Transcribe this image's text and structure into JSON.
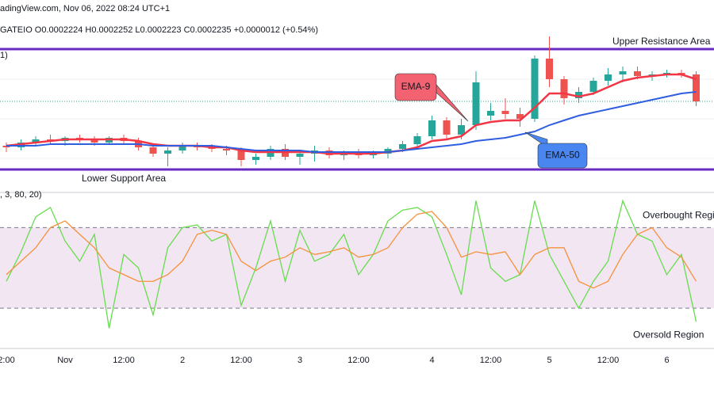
{
  "header": {
    "source": "adingView.com, Nov 06, 2022 08:24 UTC+1",
    "quote": "GATEIO  O0.0002224  H0.0002252  L0.0002223  C0.0002235  +0.0000012 (+0.54%)"
  },
  "chart_data": [
    {
      "type": "candlestick",
      "legend_text": "1)",
      "categories": [
        "2:00",
        null,
        null,
        null,
        "Nov",
        null,
        null,
        null,
        "12:00",
        null,
        null,
        null,
        "2",
        null,
        null,
        null,
        "12:00",
        null,
        null,
        null,
        "3",
        null,
        null,
        null,
        "12:00",
        null,
        null,
        null,
        null,
        "4",
        null,
        null,
        null,
        "12:00",
        null,
        null,
        null,
        "5",
        null,
        null,
        null,
        "12:00",
        null,
        null,
        null,
        "6",
        null,
        null
      ],
      "open": [
        0.0002207,
        0.0002206,
        0.0002209,
        0.0002211,
        0.000221,
        0.0002212,
        0.0002211,
        0.0002209,
        0.0002212,
        0.000221,
        0.0002206,
        0.0002202,
        0.0002204,
        0.0002207,
        0.0002206,
        0.0002205,
        0.0002204,
        0.0002198,
        0.00022,
        0.0002205,
        0.00022,
        0.0002202,
        0.0002204,
        0.0002201,
        0.0002202,
        0.0002201,
        0.0002202,
        0.0002205,
        0.0002208,
        0.0002213,
        0.0002223,
        0.0002214,
        0.000222,
        0.0002226,
        0.0002229,
        0.0002227,
        0.0002224,
        0.0002262,
        0.0002249,
        0.0002237,
        0.0002241,
        0.0002248,
        0.0002252,
        0.0002254,
        0.0002251,
        0.0002252,
        0.0002253,
        0.0002252
      ],
      "high": [
        0.0002209,
        0.0002211,
        0.0002213,
        0.0002214,
        0.0002213,
        0.0002214,
        0.0002213,
        0.0002213,
        0.0002214,
        0.0002212,
        0.0002208,
        0.0002206,
        0.0002209,
        0.0002209,
        0.0002208,
        0.0002207,
        0.0002206,
        0.0002202,
        0.0002207,
        0.0002208,
        0.0002204,
        0.0002207,
        0.0002206,
        0.0002204,
        0.0002205,
        0.0002204,
        0.0002206,
        0.000221,
        0.0002215,
        0.0002226,
        0.0002225,
        0.0002224,
        0.0002254,
        0.0002234,
        0.0002237,
        0.0002231,
        0.0002264,
        0.0002276,
        0.0002251,
        0.0002244,
        0.000225,
        0.0002256,
        0.0002257,
        0.0002257,
        0.0002254,
        0.0002255,
        0.0002255,
        0.0002254
      ],
      "low": [
        0.0002203,
        0.0002204,
        0.0002207,
        0.0002208,
        0.0002207,
        0.0002209,
        0.0002207,
        0.0002208,
        0.0002208,
        0.0002204,
        0.00022,
        0.0002194,
        0.0002202,
        0.0002204,
        0.0002203,
        0.0002201,
        0.0002194,
        0.0002195,
        0.0002198,
        0.0002198,
        0.0002195,
        0.0002197,
        0.0002199,
        0.0002198,
        0.0002199,
        0.0002199,
        0.0002199,
        0.0002203,
        0.0002206,
        0.0002211,
        0.0002211,
        0.0002211,
        0.0002217,
        0.0002223,
        0.0002224,
        0.0002219,
        0.0002222,
        0.0002244,
        0.0002233,
        0.0002234,
        0.0002239,
        0.0002245,
        0.0002247,
        0.0002249,
        0.0002248,
        0.000225,
        0.000225,
        0.0002232
      ],
      "close": [
        0.0002206,
        0.0002209,
        0.0002211,
        0.000221,
        0.0002212,
        0.0002211,
        0.0002209,
        0.0002212,
        0.000221,
        0.0002206,
        0.0002202,
        0.0002204,
        0.0002207,
        0.0002206,
        0.0002205,
        0.0002204,
        0.0002198,
        0.00022,
        0.0002205,
        0.00022,
        0.0002202,
        0.0002204,
        0.0002201,
        0.0002202,
        0.0002201,
        0.0002202,
        0.0002205,
        0.0002208,
        0.0002213,
        0.0002223,
        0.0002214,
        0.000222,
        0.0002247,
        0.0002229,
        0.0002227,
        0.0002224,
        0.0002262,
        0.0002249,
        0.0002237,
        0.0002241,
        0.0002248,
        0.0002252,
        0.0002254,
        0.0002251,
        0.0002252,
        0.0002253,
        0.0002252,
        0.0002235
      ],
      "up_color": "#26a69a",
      "down_color": "#ef5350",
      "series": [
        {
          "name": "EMA-9",
          "color": "#f23645",
          "callout_color": "#f26270",
          "values": [
            0.0002207,
            0.0002208,
            0.0002209,
            0.000221,
            0.0002211,
            0.0002211,
            0.0002211,
            0.0002211,
            0.0002211,
            0.000221,
            0.0002208,
            0.0002207,
            0.0002207,
            0.0002207,
            0.0002206,
            0.0002206,
            0.0002204,
            0.0002203,
            0.0002203,
            0.0002203,
            0.0002203,
            0.0002203,
            0.0002202,
            0.0002202,
            0.0002202,
            0.0002202,
            0.0002203,
            0.0002204,
            0.0002206,
            0.000221,
            0.0002211,
            0.0002213,
            0.000222,
            0.0002222,
            0.0002223,
            0.0002223,
            0.0002231,
            0.000224,
            0.000224,
            0.0002238,
            0.000224,
            0.0002244,
            0.0002248,
            0.000225,
            0.0002251,
            0.0002252,
            0.0002252,
            0.0002249
          ]
        },
        {
          "name": "EMA-50",
          "color": "#2f5ee0",
          "callout_color": "#4a86f0",
          "values": [
            0.0002207,
            0.0002207,
            0.0002207,
            0.0002208,
            0.0002208,
            0.0002208,
            0.0002208,
            0.0002208,
            0.0002208,
            0.0002208,
            0.0002207,
            0.0002207,
            0.0002207,
            0.0002207,
            0.0002207,
            0.0002206,
            0.0002205,
            0.0002204,
            0.0002204,
            0.0002204,
            0.0002204,
            0.0002203,
            0.0002203,
            0.0002203,
            0.0002203,
            0.0002203,
            0.0002203,
            0.0002204,
            0.0002205,
            0.0002206,
            0.0002207,
            0.0002208,
            0.000221,
            0.0002211,
            0.0002212,
            0.0002214,
            0.0002216,
            0.000222,
            0.0002223,
            0.0002226,
            0.0002228,
            0.000223,
            0.0002232,
            0.0002234,
            0.0002236,
            0.0002238,
            0.000224,
            0.0002241
          ]
        }
      ],
      "levels": [
        {
          "value": 0.0002268,
          "label": "Upper Resistance Area"
        },
        {
          "value": 0.0002192,
          "label": "Lower Support Area"
        }
      ],
      "level_color": "#6a2bc4",
      "last_price": 0.0002235,
      "ylim": [
        0.0002179,
        0.0002289
      ]
    },
    {
      "type": "line",
      "legend_text": ", 3, 80, 20)",
      "series": [
        {
          "color": "#66dd4d",
          "values": [
            40,
            62,
            88,
            95,
            70,
            55,
            75,
            5,
            60,
            50,
            15,
            65,
            80,
            82,
            70,
            75,
            22,
            50,
            85,
            40,
            78,
            55,
            60,
            75,
            45,
            60,
            85,
            93,
            95,
            88,
            60,
            30,
            100,
            50,
            40,
            45,
            100,
            60,
            40,
            20,
            40,
            55,
            100,
            75,
            70,
            45,
            60,
            10
          ]
        },
        {
          "color": "#f5913a",
          "values": [
            45,
            55,
            65,
            80,
            85,
            75,
            65,
            50,
            45,
            40,
            40,
            45,
            55,
            75,
            78,
            75,
            55,
            48,
            55,
            58,
            65,
            60,
            62,
            65,
            58,
            60,
            65,
            80,
            90,
            92,
            80,
            58,
            62,
            60,
            62,
            45,
            60,
            65,
            65,
            40,
            35,
            40,
            60,
            75,
            80,
            65,
            58,
            40
          ]
        }
      ],
      "levels": [
        {
          "value": 80,
          "label": "Overbought Region"
        },
        {
          "value": 20,
          "label": "Oversold Region"
        }
      ],
      "band_color": "#f2e6f3",
      "ylim": [
        -10,
        105
      ]
    }
  ]
}
